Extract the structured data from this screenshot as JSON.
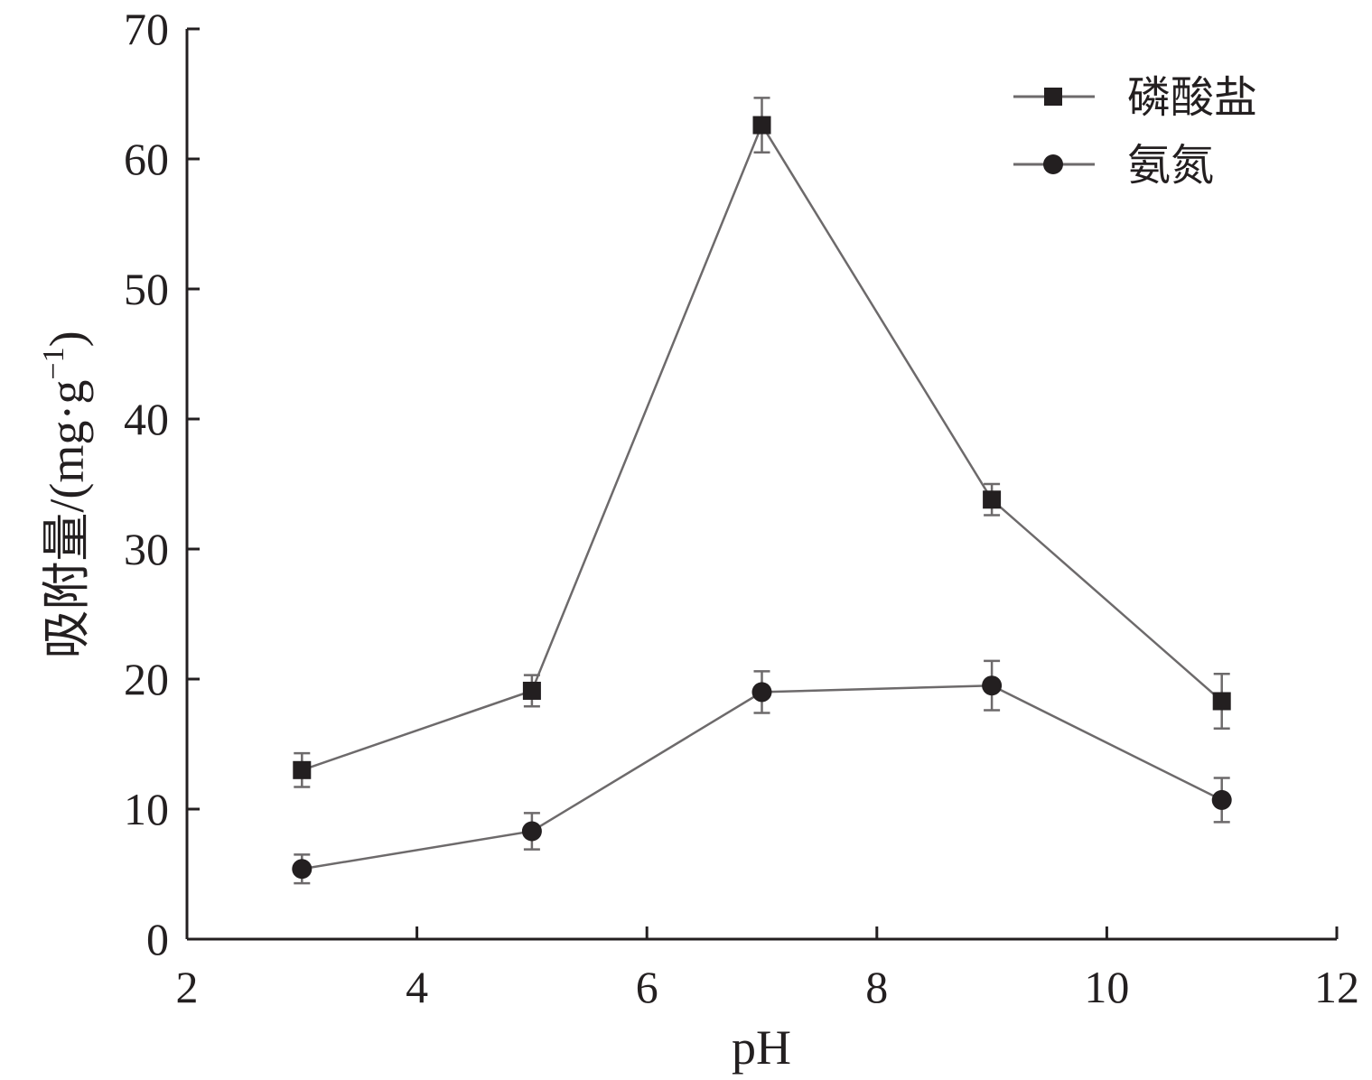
{
  "chart_data": {
    "type": "line",
    "xlabel": "pH",
    "ylabel": "吸附量/(mg·g",
    "ylabel_superscript": "−1",
    "ylabel_close": ")",
    "xlim": [
      2,
      12
    ],
    "ylim": [
      0,
      70
    ],
    "xticks": [
      2,
      4,
      6,
      8,
      10,
      12
    ],
    "yticks": [
      0,
      10,
      20,
      30,
      40,
      50,
      60,
      70
    ],
    "grid": false,
    "legend_position": "top-right",
    "x": [
      3,
      5,
      7,
      9,
      11
    ],
    "series": [
      {
        "name": "磷酸盐",
        "marker": "square",
        "color": "#231f20",
        "line_color": "#6d6a6b",
        "values": [
          13.0,
          19.1,
          62.6,
          33.8,
          18.3
        ],
        "errors": [
          1.3,
          1.2,
          2.1,
          1.2,
          2.1
        ]
      },
      {
        "name": "氨氮",
        "marker": "circle",
        "color": "#231f20",
        "line_color": "#6d6a6b",
        "values": [
          5.4,
          8.3,
          19.0,
          19.5,
          10.7
        ],
        "errors": [
          1.1,
          1.4,
          1.6,
          1.9,
          1.7
        ]
      }
    ]
  }
}
